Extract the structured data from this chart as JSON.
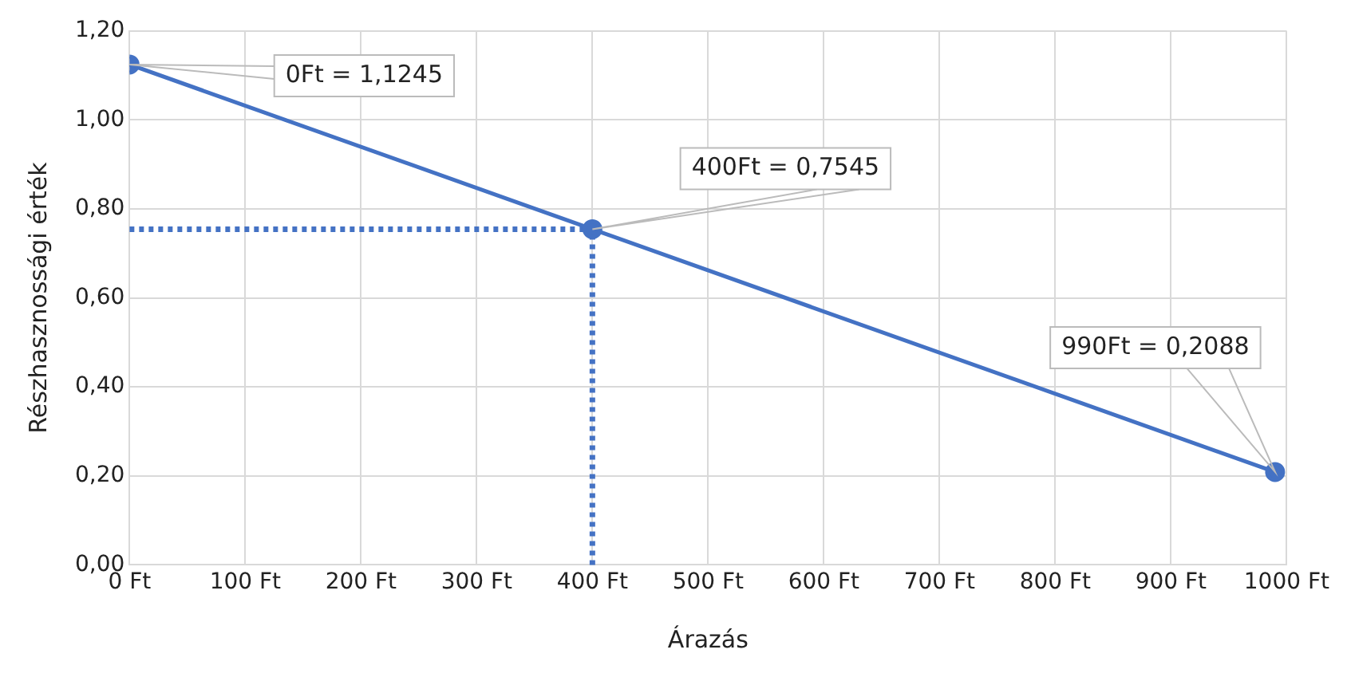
{
  "chart_data": {
    "type": "line",
    "xlabel": "Árazás",
    "ylabel": "Részhasznossági érték",
    "x": [
      0,
      400,
      990
    ],
    "series": [
      {
        "color": "#4472c4",
        "values": [
          1.1245,
          0.7545,
          0.2088
        ]
      }
    ],
    "xlim": [
      0,
      1000
    ],
    "xticks": [
      {
        "value": 0,
        "label": "0 Ft"
      },
      {
        "value": 100,
        "label": "100 Ft"
      },
      {
        "value": 200,
        "label": "200 Ft"
      },
      {
        "value": 300,
        "label": "300 Ft"
      },
      {
        "value": 400,
        "label": "400 Ft"
      },
      {
        "value": 500,
        "label": "500 Ft"
      },
      {
        "value": 600,
        "label": "600 Ft"
      },
      {
        "value": 700,
        "label": "700 Ft"
      },
      {
        "value": 800,
        "label": "800 Ft"
      },
      {
        "value": 900,
        "label": "900 Ft"
      },
      {
        "value": 1000,
        "label": "1000 Ft"
      }
    ],
    "ylim": [
      0,
      1.2
    ],
    "yticks": [
      {
        "value": 0,
        "label": "0,00"
      },
      {
        "value": 0.2,
        "label": "0,20"
      },
      {
        "value": 0.4,
        "label": "0,40"
      },
      {
        "value": 0.6,
        "label": "0,60"
      },
      {
        "value": 0.8,
        "label": "0,80"
      },
      {
        "value": 1,
        "label": "1,00"
      },
      {
        "value": 1.2,
        "label": "1,20"
      }
    ],
    "grid": true,
    "marker": "circle",
    "line_style": "solid",
    "ref_lines": [
      {
        "axis": "x",
        "value": 400,
        "color": "#4472c4",
        "line_style": "dotted"
      },
      {
        "axis": "y",
        "value": 0.7545,
        "color": "#4472c4",
        "line_style": "dotted"
      }
    ],
    "annotations": [
      "0Ft = 1,1245",
      "400Ft = 0,7545",
      "990Ft = 0,2088"
    ]
  }
}
